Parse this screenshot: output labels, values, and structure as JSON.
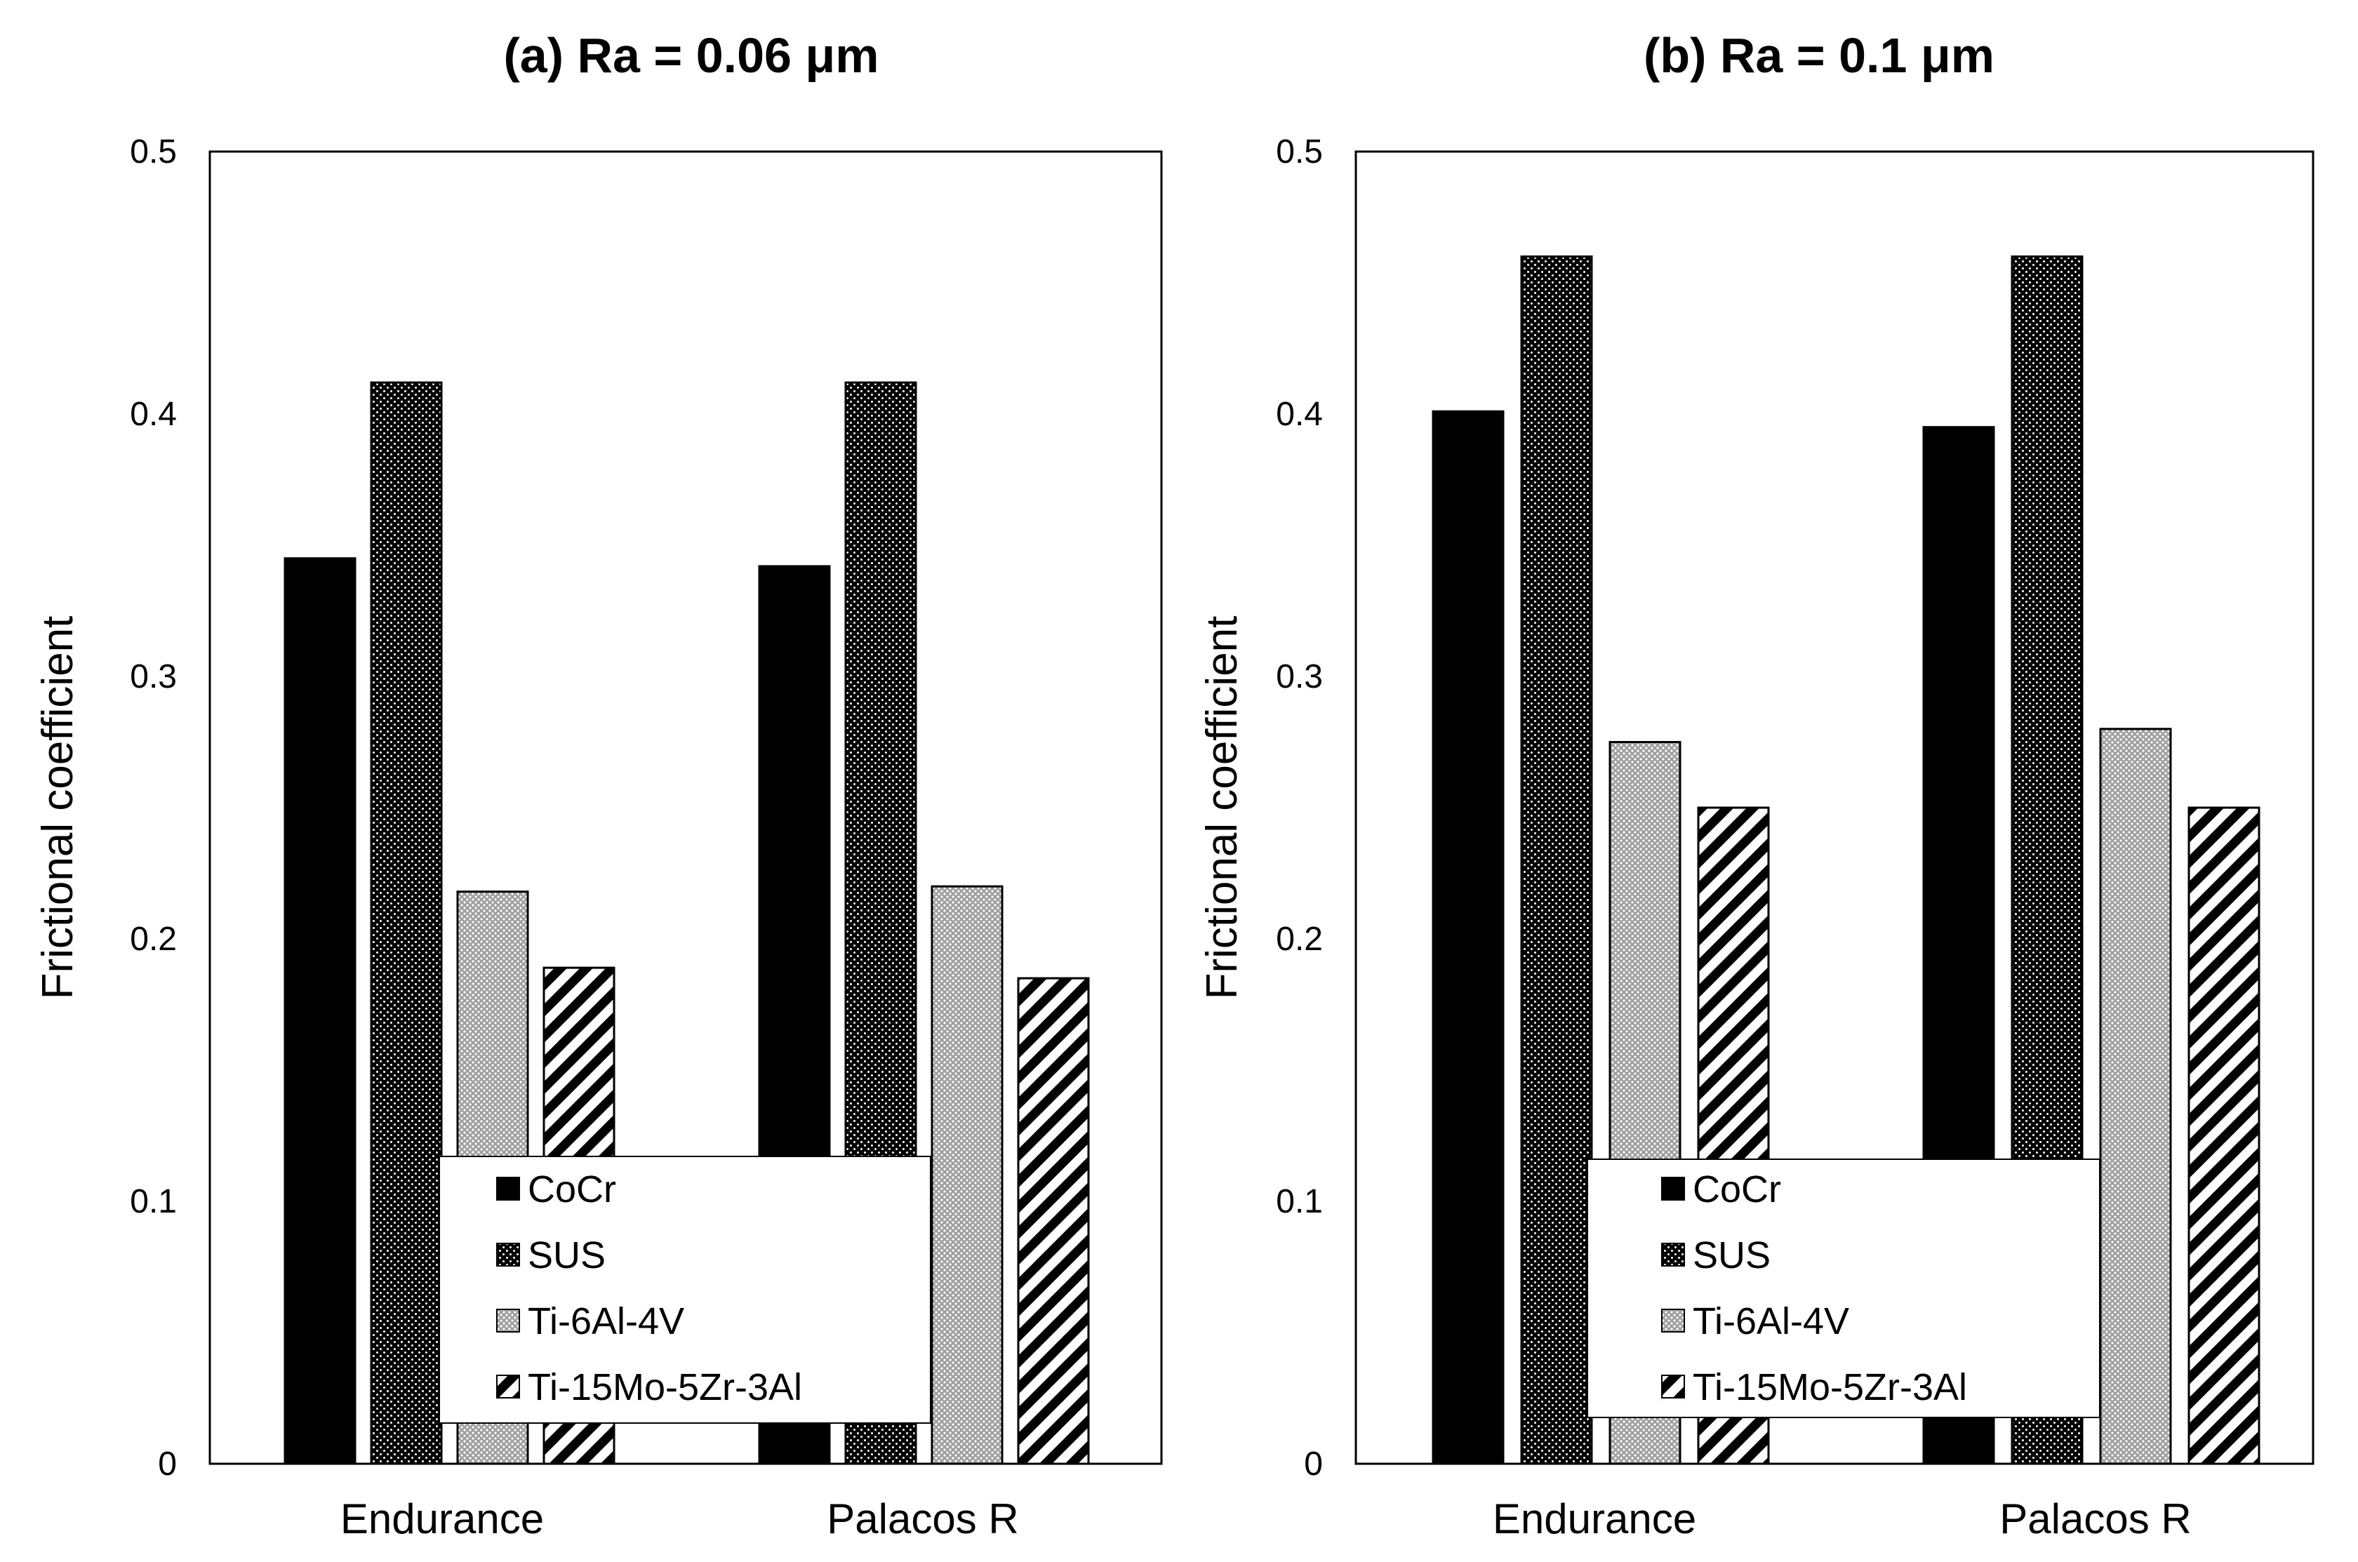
{
  "chart_data": [
    {
      "type": "bar",
      "title": "(a) Ra = 0.06 μm",
      "xlabel": "",
      "ylabel": "Frictional coefficient",
      "ylim": [
        0,
        0.5
      ],
      "yticks": [
        "0",
        "0.1",
        "0.2",
        "0.3",
        "0.4",
        "0.5"
      ],
      "categories": [
        "Endurance",
        "Palacos R"
      ],
      "series": [
        {
          "name": "CoCr",
          "values": [
            0.345,
            0.342
          ]
        },
        {
          "name": "SUS",
          "values": [
            0.412,
            0.412
          ]
        },
        {
          "name": "Ti-6Al-4V",
          "values": [
            0.218,
            0.22
          ]
        },
        {
          "name": "Ti-15Mo-5Zr-3Al",
          "values": [
            0.189,
            0.185
          ]
        }
      ],
      "legend_position": "bottom-center"
    },
    {
      "type": "bar",
      "title": "(b) Ra = 0.1 μm",
      "xlabel": "",
      "ylabel": "Frictional coefficient",
      "ylim": [
        0,
        0.5
      ],
      "yticks": [
        "0",
        "0.1",
        "0.2",
        "0.3",
        "0.4",
        "0.5"
      ],
      "categories": [
        "Endurance",
        "Palacos R"
      ],
      "series": [
        {
          "name": "CoCr",
          "values": [
            0.401,
            0.395
          ]
        },
        {
          "name": "SUS",
          "values": [
            0.46,
            0.46
          ]
        },
        {
          "name": "Ti-6Al-4V",
          "values": [
            0.275,
            0.28
          ]
        },
        {
          "name": "Ti-15Mo-5Zr-3Al",
          "values": [
            0.25,
            0.25
          ]
        }
      ],
      "legend_position": "bottom-center"
    }
  ],
  "patterns": [
    "solid",
    "checker",
    "dots",
    "diagonal"
  ]
}
